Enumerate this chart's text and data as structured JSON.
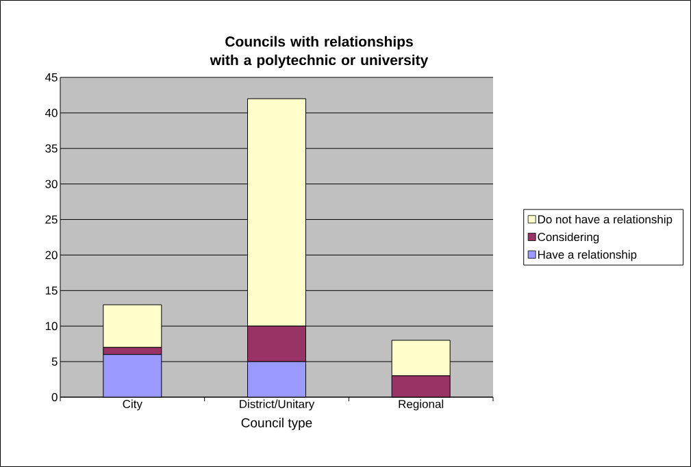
{
  "chart_data": {
    "type": "bar",
    "title": "Councils with relationships with a polytechnic or university",
    "xlabel": "Council type",
    "categories": [
      "City",
      "District/Unitary",
      "Regional"
    ],
    "series": [
      {
        "name": "Have a relationship",
        "color": "#9999ff",
        "values": [
          6,
          5,
          0
        ]
      },
      {
        "name": "Considering",
        "color": "#993366",
        "values": [
          1,
          5,
          3
        ]
      },
      {
        "name": "Do not have a relationship",
        "color": "#ffffcc",
        "values": [
          6,
          32,
          5
        ]
      }
    ],
    "stacked": true,
    "ylim": [
      0,
      45
    ],
    "yticks": [
      0,
      5,
      10,
      15,
      20,
      25,
      30,
      35,
      40,
      45
    ],
    "grid": "y",
    "legend": "right"
  }
}
